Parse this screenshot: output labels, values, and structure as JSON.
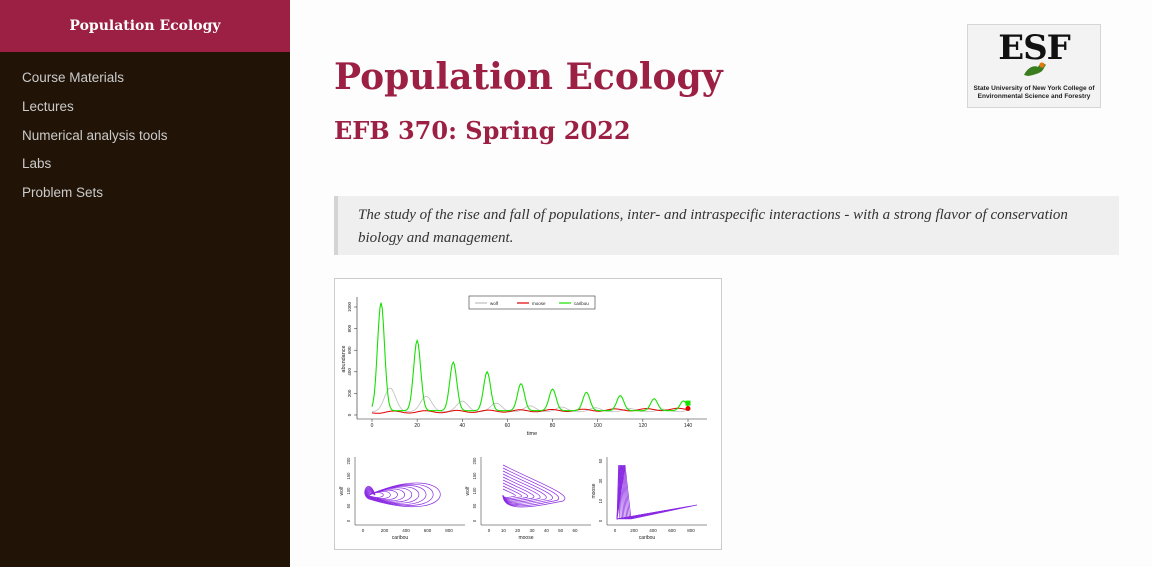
{
  "sidebar": {
    "brand": "Population Ecology",
    "items": [
      {
        "label": "Course Materials"
      },
      {
        "label": "Lectures"
      },
      {
        "label": "Numerical analysis tools"
      },
      {
        "label": "Labs"
      },
      {
        "label": "Problem Sets"
      }
    ]
  },
  "main": {
    "title": "Population Ecology",
    "subtitle": "EFB 370: Spring 2022",
    "quote": "The study of the rise and fall of populations, inter- and intraspecific interactions - with a strong flavor of conservation biology and management."
  },
  "logo": {
    "main": "ESF",
    "line1": "State University of New York College of",
    "line2": "Environmental Science and Forestry"
  },
  "figure": {
    "legend": [
      "wolf",
      "moose",
      "caribou"
    ],
    "ylabel": "abundance",
    "xlabel": "time",
    "yticks": [
      "0",
      "200",
      "400",
      "600",
      "800",
      "1000"
    ],
    "xticks": [
      "0",
      "20",
      "40",
      "60",
      "80",
      "100",
      "120",
      "140"
    ],
    "panels": [
      {
        "ylabel": "wolf",
        "xlabel": "caribou",
        "yticks": [
          "0",
          "50",
          "100",
          "150",
          "200"
        ],
        "xticks": [
          "0",
          "200",
          "400",
          "600",
          "800"
        ]
      },
      {
        "ylabel": "wolf",
        "xlabel": "moose",
        "yticks": [
          "0",
          "50",
          "100",
          "150",
          "200"
        ],
        "xticks": [
          "0",
          "10",
          "20",
          "30",
          "40",
          "50",
          "60"
        ]
      },
      {
        "ylabel": "moose",
        "xlabel": "caribou",
        "yticks": [
          "0",
          "10",
          "30",
          "50"
        ],
        "xticks": [
          "0",
          "200",
          "400",
          "600",
          "800"
        ]
      }
    ],
    "colors": {
      "wolf": "#bdbdbd",
      "moose": "#e00000",
      "caribou": "#18e000",
      "phase": "#8a2be2"
    }
  }
}
